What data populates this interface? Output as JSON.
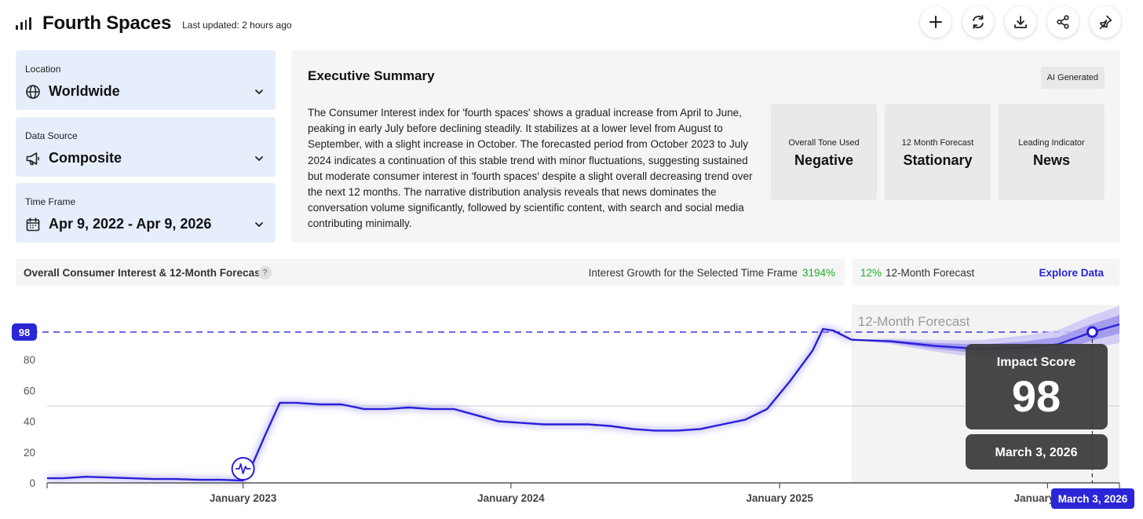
{
  "header": {
    "title": "Fourth Spaces",
    "last_updated": "Last updated: 2 hours ago",
    "actions": [
      "add-icon",
      "refresh-icon",
      "download-icon",
      "share-icon",
      "pin-icon"
    ]
  },
  "filters": {
    "location": {
      "label": "Location",
      "value": "Worldwide",
      "icon": "globe-icon"
    },
    "data_source": {
      "label": "Data Source",
      "value": "Composite",
      "icon": "megaphone-icon"
    },
    "time_frame": {
      "label": "Time Frame",
      "value": "Apr 9, 2022 - Apr 9, 2026",
      "icon": "calendar-icon"
    }
  },
  "summary": {
    "title": "Executive Summary",
    "badge": "AI Generated",
    "text": "The Consumer Interest index for 'fourth spaces' shows a gradual increase from April to June, peaking in early July before declining steadily. It stabilizes at a lower level from August to September, with a slight increase in October. The forecasted period from October 2023 to July 2024 indicates a continuation of this stable trend with minor fluctuations, suggesting sustained but moderate consumer interest in 'fourth spaces' despite a slight overall decreasing trend over the next 12 months. The narrative distribution analysis reveals that news dominates the conversation volume significantly, followed by scientific content, with search and social media contributing minimally.",
    "kpis": [
      {
        "label": "Overall Tone Used",
        "value": "Negative"
      },
      {
        "label": "12 Month Forecast",
        "value": "Stationary"
      },
      {
        "label": "Leading Indicator",
        "value": "News"
      }
    ]
  },
  "chart_header": {
    "title": "Overall Consumer Interest & 12-Month Forecast",
    "help": "?",
    "growth_label": "Interest Growth for the Selected Time Frame",
    "growth_value": "3194%",
    "forecast_pct": "12%",
    "forecast_label": "12-Month Forecast",
    "explore": "Explore Data"
  },
  "chart_data": {
    "type": "line",
    "ylim": [
      0,
      100
    ],
    "y_ticks": [
      "0",
      "20",
      "40",
      "60",
      "80"
    ],
    "x_ticks": [
      {
        "label": "January 2023",
        "date": "2023-01-01"
      },
      {
        "label": "January 2024",
        "date": "2024-01-01"
      },
      {
        "label": "January 2025",
        "date": "2025-01-01"
      },
      {
        "label": "January 2026",
        "date": "2026-01-01"
      }
    ],
    "x_range": [
      "2022-04-09",
      "2026-04-09"
    ],
    "reference_line": {
      "label": "98",
      "value": 98
    },
    "forecast_label": "12-Month Forecast",
    "forecast_start": "2025-04-09",
    "series": [
      {
        "type": "actual",
        "points": [
          [
            "2022-04-09",
            3
          ],
          [
            "2022-05-01",
            3
          ],
          [
            "2022-06-01",
            4
          ],
          [
            "2022-07-01",
            3.5
          ],
          [
            "2022-08-01",
            3
          ],
          [
            "2022-09-01",
            2.5
          ],
          [
            "2022-10-01",
            2.5
          ],
          [
            "2022-11-01",
            2
          ],
          [
            "2022-12-01",
            2
          ],
          [
            "2023-01-01",
            1.5
          ],
          [
            "2023-01-10",
            8
          ],
          [
            "2023-02-01",
            32
          ],
          [
            "2023-02-20",
            52
          ],
          [
            "2023-03-15",
            52
          ],
          [
            "2023-04-15",
            51
          ],
          [
            "2023-05-15",
            51
          ],
          [
            "2023-06-15",
            48
          ],
          [
            "2023-07-15",
            48
          ],
          [
            "2023-08-15",
            49
          ],
          [
            "2023-09-15",
            48
          ],
          [
            "2023-10-15",
            48
          ],
          [
            "2023-11-15",
            44
          ],
          [
            "2023-12-15",
            40
          ],
          [
            "2024-01-15",
            39
          ],
          [
            "2024-02-15",
            38
          ],
          [
            "2024-03-15",
            38
          ],
          [
            "2024-04-15",
            38
          ],
          [
            "2024-05-15",
            37
          ],
          [
            "2024-06-15",
            35
          ],
          [
            "2024-07-15",
            34
          ],
          [
            "2024-08-15",
            34
          ],
          [
            "2024-09-15",
            35
          ],
          [
            "2024-10-15",
            38
          ],
          [
            "2024-11-15",
            41
          ],
          [
            "2024-12-15",
            48
          ],
          [
            "2025-01-15",
            66
          ],
          [
            "2025-02-15",
            86
          ],
          [
            "2025-03-01",
            100
          ],
          [
            "2025-03-15",
            99
          ],
          [
            "2025-04-09",
            93
          ]
        ]
      },
      {
        "type": "forecast",
        "points": [
          [
            "2025-04-09",
            93
          ],
          [
            "2025-06-01",
            92
          ],
          [
            "2025-08-01",
            89
          ],
          [
            "2025-10-01",
            87
          ],
          [
            "2025-12-01",
            88
          ],
          [
            "2026-01-15",
            90
          ],
          [
            "2026-03-03",
            98
          ],
          [
            "2026-04-09",
            103
          ]
        ]
      }
    ],
    "tooltip": {
      "title": "Impact Score",
      "value": "98",
      "date": "March 3, 2026"
    },
    "axis_date_label": "March 3, 2026",
    "event_marker": {
      "date": "2023-01-01",
      "icon": "pulse-icon"
    }
  }
}
